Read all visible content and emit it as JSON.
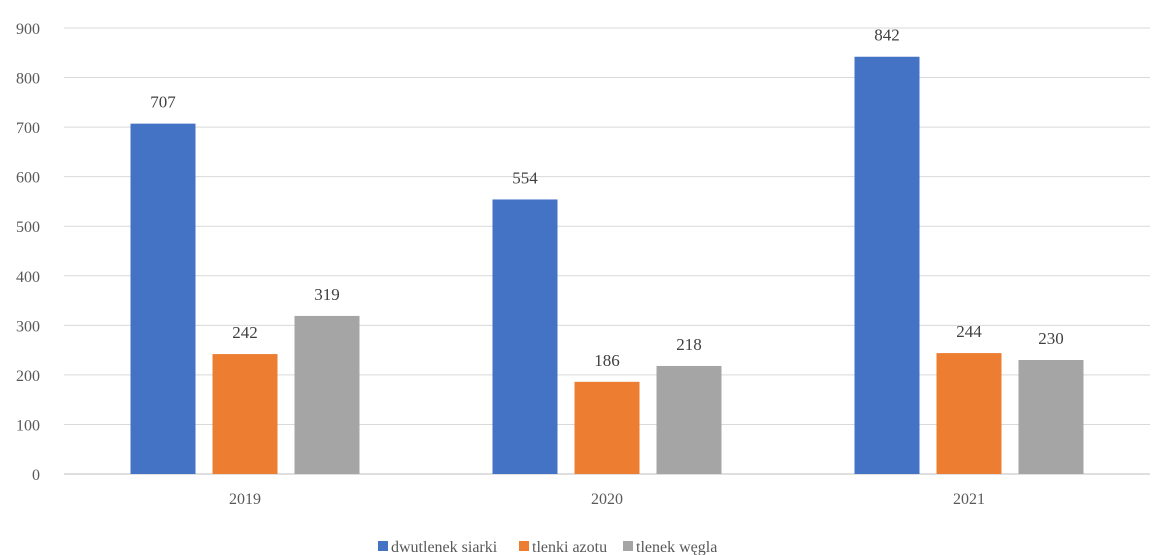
{
  "chart_data": {
    "type": "bar",
    "categories": [
      "2019",
      "2020",
      "2021"
    ],
    "series": [
      {
        "name": "dwutlenek siarki",
        "color": "#4472C4",
        "values": [
          707,
          554,
          842
        ]
      },
      {
        "name": "tlenki azotu",
        "color": "#ED7D31",
        "values": [
          242,
          186,
          244
        ]
      },
      {
        "name": "tlenek węgla",
        "color": "#A5A5A5",
        "values": [
          319,
          218,
          230
        ]
      }
    ],
    "ylim": [
      0,
      900
    ],
    "yticks": [
      0,
      100,
      200,
      300,
      400,
      500,
      600,
      700,
      800,
      900
    ],
    "grid": true,
    "legend": "bottom"
  }
}
